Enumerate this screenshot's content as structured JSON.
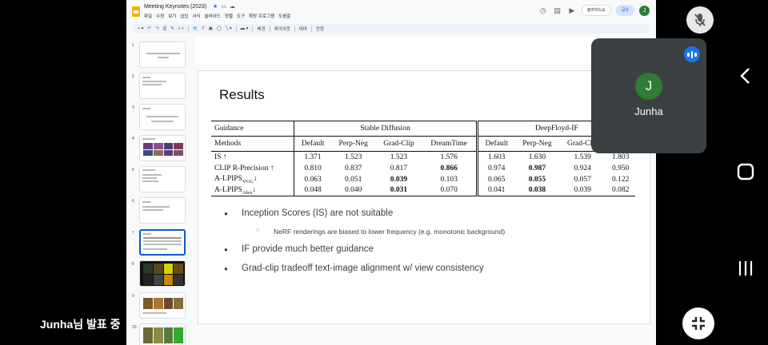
{
  "app": {
    "doc_title": "Meeting Keynotes (2023)",
    "menu": [
      "파일",
      "수정",
      "보기",
      "삽입",
      "서식",
      "슬라이드",
      "정렬",
      "도구",
      "확장 프로그램",
      "도움말"
    ],
    "slideshow_label": "슬라이드쇼",
    "share_label": "공유",
    "account_initial": "J",
    "toolbar_labels": [
      "배경",
      "레이아웃",
      "테마",
      "전환"
    ]
  },
  "filmstrip": {
    "slide_numbers": [
      "1",
      "2",
      "3",
      "4",
      "5",
      "6",
      "7",
      "8",
      "9",
      "10"
    ],
    "active_index": 7
  },
  "slide": {
    "title": "Results",
    "table": {
      "guidance_label": "Guidance",
      "methods_label": "Methods",
      "group1": "Stable Diffusion",
      "group2": "DeepFloyd-IF",
      "group1_methods": [
        "Default",
        "Perp-Neg",
        "Grad-Clip",
        "DreamTime"
      ],
      "group2_methods": [
        "Default",
        "Perp-Neg",
        "Grad-Clip",
        ""
      ],
      "rows": [
        {
          "metric": "IS ↑",
          "vals": [
            "1.371",
            "1.523",
            "1.523",
            "1.576",
            "1.603",
            "1.630",
            "1.539",
            "1.803"
          ]
        },
        {
          "metric": "CLIP R-Precision ↑",
          "vals": [
            "0.810",
            "0.837",
            "0.817",
            "0.866",
            "0.974",
            "0.987",
            "0.924",
            "0.950"
          ]
        },
        {
          "metric": "A-LPIPS",
          "sub": "VGG",
          "arrow": "↓",
          "vals": [
            "0.063",
            "0.051",
            "0.039",
            "0.103",
            "0.065",
            "0.055",
            "0.057",
            "0.122"
          ]
        },
        {
          "metric": "A-LPIPS",
          "sub": "Alex",
          "arrow": "↓",
          "vals": [
            "0.048",
            "0.040",
            "0.031",
            "0.070",
            "0.041",
            "0.038",
            "0.039",
            "0.082"
          ]
        }
      ]
    },
    "bullets": [
      {
        "text": "Inception Scores (IS) are not suitable",
        "level": 1
      },
      {
        "text": "NeRF renderings are biased to lower frequency (e.g. monotonic background)",
        "level": 2
      },
      {
        "text": "IF provide much better guidance",
        "level": 1
      },
      {
        "text": "Grad-clip tradeoff text-image alignment w/ view consistency",
        "level": 1
      }
    ]
  },
  "meet": {
    "participant_initial": "J",
    "participant_name": "Junha",
    "presenting_label": "Junha님 발표 중"
  },
  "colors": {
    "accent": "#0b57d0",
    "avatar": "#2e7d32",
    "tile": "#3c4043"
  }
}
